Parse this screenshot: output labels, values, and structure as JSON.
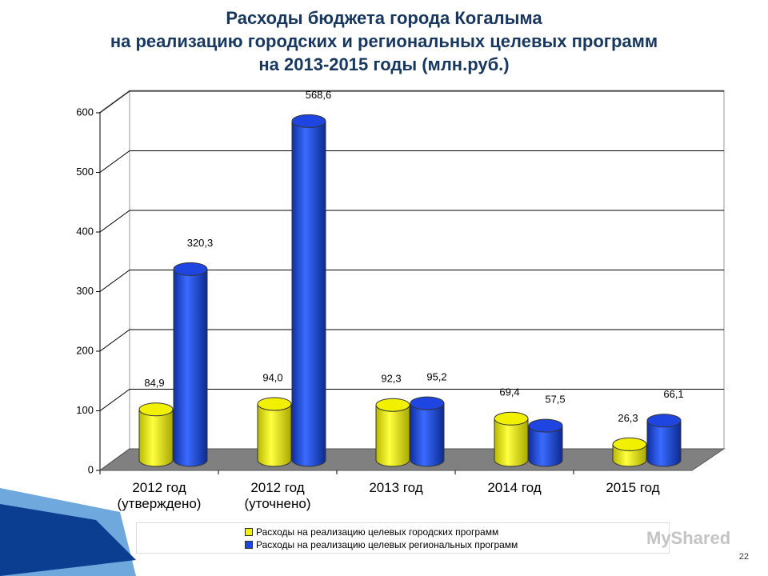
{
  "chart_data": {
    "type": "bar3d",
    "title": "Расходы бюджета города Когалыма\nна реализацию городских и региональных целевых программ\nна 2013-2015 годы (млн.руб.)",
    "categories": [
      "2012 год\n(утверждено)",
      "2012 год\n(уточнено)",
      "2013 год",
      "2014 год",
      "2015 год"
    ],
    "series": [
      {
        "name": "Расходы на реализацию целевых городских программ",
        "color": "#f0f000",
        "values": [
          84.9,
          94.0,
          92.3,
          69.4,
          26.3
        ],
        "value_labels": [
          "84,9",
          "94,0",
          "92,3",
          "69,4",
          "26,3"
        ]
      },
      {
        "name": "Расходы на реализацию целевых региональных программ",
        "color": "#1f45e0",
        "values": [
          320.3,
          568.6,
          95.2,
          57.5,
          66.1
        ],
        "value_labels": [
          "320,3",
          "568,6",
          "95,2",
          "57,5",
          "66,1"
        ]
      }
    ],
    "ylim": [
      0,
      600
    ],
    "yticks": [
      0,
      100,
      200,
      300,
      400,
      500,
      600
    ],
    "grid": true,
    "legend": "bottom"
  },
  "slide_number": "22",
  "watermark": "MyShared"
}
